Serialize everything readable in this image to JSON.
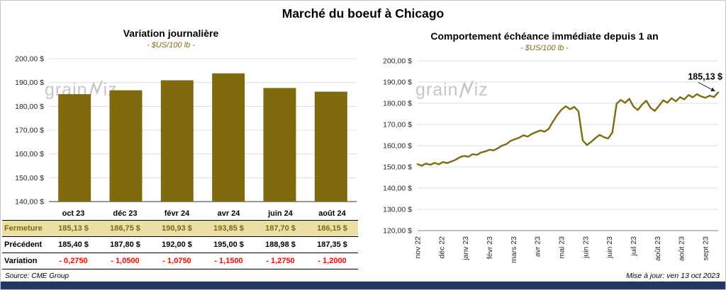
{
  "colors": {
    "accent": "#7F6A0D",
    "highlight_row": "#EBDFA6",
    "negative": "#FF0000",
    "navy_bar": "#1F3864",
    "grid": "#DCDCDC",
    "watermark": "#C6C6C6"
  },
  "header": {
    "title": "Marché du boeuf à Chicago"
  },
  "watermark": {
    "pre": "grain",
    "post": "iz"
  },
  "left_panel": {
    "title": "Variation journalière",
    "subtitle": "- $US/100 lb -"
  },
  "right_panel": {
    "title": "Comportement échéance immédiate depuis 1 an",
    "subtitle": "- $US/100 lb -"
  },
  "table": {
    "rows": [
      {
        "label": "Fermeture",
        "style": "highlight",
        "values": [
          "185,13 $",
          "186,75 $",
          "190,93 $",
          "193,85 $",
          "187,70 $",
          "186,15 $"
        ]
      },
      {
        "label": "Précédent",
        "style": "normal",
        "values": [
          "185,40 $",
          "187,80 $",
          "192,00 $",
          "195,00 $",
          "188,98 $",
          "187,35 $"
        ]
      },
      {
        "label": "Variation",
        "style": "negative",
        "values": [
          "- 0,2750",
          "- 1,0500",
          "- 1,0750",
          "- 1,1500",
          "- 1,2750",
          "- 1,2000"
        ]
      }
    ]
  },
  "footer": {
    "source": "Source: CME Group",
    "updated": "Mise à jour: ven 13 oct 2023"
  },
  "chart_data": [
    {
      "type": "bar",
      "title": "Variation journalière",
      "subtitle": "- $US/100 lb -",
      "categories": [
        "oct 23",
        "déc 23",
        "févr 24",
        "avr 24",
        "juin 24",
        "août 24"
      ],
      "values": [
        185.13,
        186.75,
        190.93,
        193.85,
        187.7,
        186.15
      ],
      "ylim": [
        140,
        200
      ],
      "ytick_step": 10,
      "ytick_labels": [
        "200,00 $",
        "190,00 $",
        "180,00 $",
        "170,00 $",
        "160,00 $",
        "150,00 $",
        "140,00 $"
      ],
      "bar_color": "#7F6A0D",
      "grid": true,
      "legend": false
    },
    {
      "type": "line",
      "title": "Comportement échéance immédiate depuis 1 an",
      "subtitle": "- $US/100 lb -",
      "x_labels": [
        "nov 22",
        "déc 22",
        "janv 23",
        "févr 23",
        "mars 23",
        "avr 23",
        "mai 23",
        "juin 23",
        "juin 23",
        "juil 23",
        "août 23",
        "août 23",
        "sept 23"
      ],
      "x_labels_rotated": true,
      "values": [
        151.3,
        150.6,
        151.6,
        151.0,
        151.9,
        151.2,
        152.3,
        151.8,
        152.6,
        153.4,
        154.6,
        155.2,
        154.8,
        156.0,
        155.7,
        156.8,
        157.3,
        158.1,
        157.8,
        158.9,
        160.1,
        160.8,
        162.3,
        163.1,
        163.8,
        164.9,
        164.3,
        165.6,
        166.4,
        167.2,
        166.6,
        168.0,
        171.5,
        174.5,
        177.0,
        178.6,
        177.2,
        178.3,
        176.2,
        162.5,
        160.3,
        161.8,
        163.6,
        165.1,
        164.0,
        163.4,
        166.2,
        179.8,
        181.6,
        180.2,
        182.1,
        178.4,
        176.8,
        179.3,
        181.2,
        177.9,
        176.4,
        178.8,
        181.4,
        180.3,
        182.4,
        180.9,
        182.9,
        181.8,
        183.9,
        182.8,
        184.3,
        183.2,
        182.6,
        183.6,
        182.9,
        185.13
      ],
      "ylim": [
        120,
        200
      ],
      "ytick_step": 10,
      "ytick_labels": [
        "200,00 $",
        "190,00 $",
        "180,00 $",
        "170,00 $",
        "160,00 $",
        "150,00 $",
        "140,00 $",
        "130,00 $",
        "120,00 $"
      ],
      "line_color": "#7F6A0D",
      "last_value": 185.13,
      "annotation": "185,13 $",
      "grid": true,
      "legend": false
    }
  ]
}
